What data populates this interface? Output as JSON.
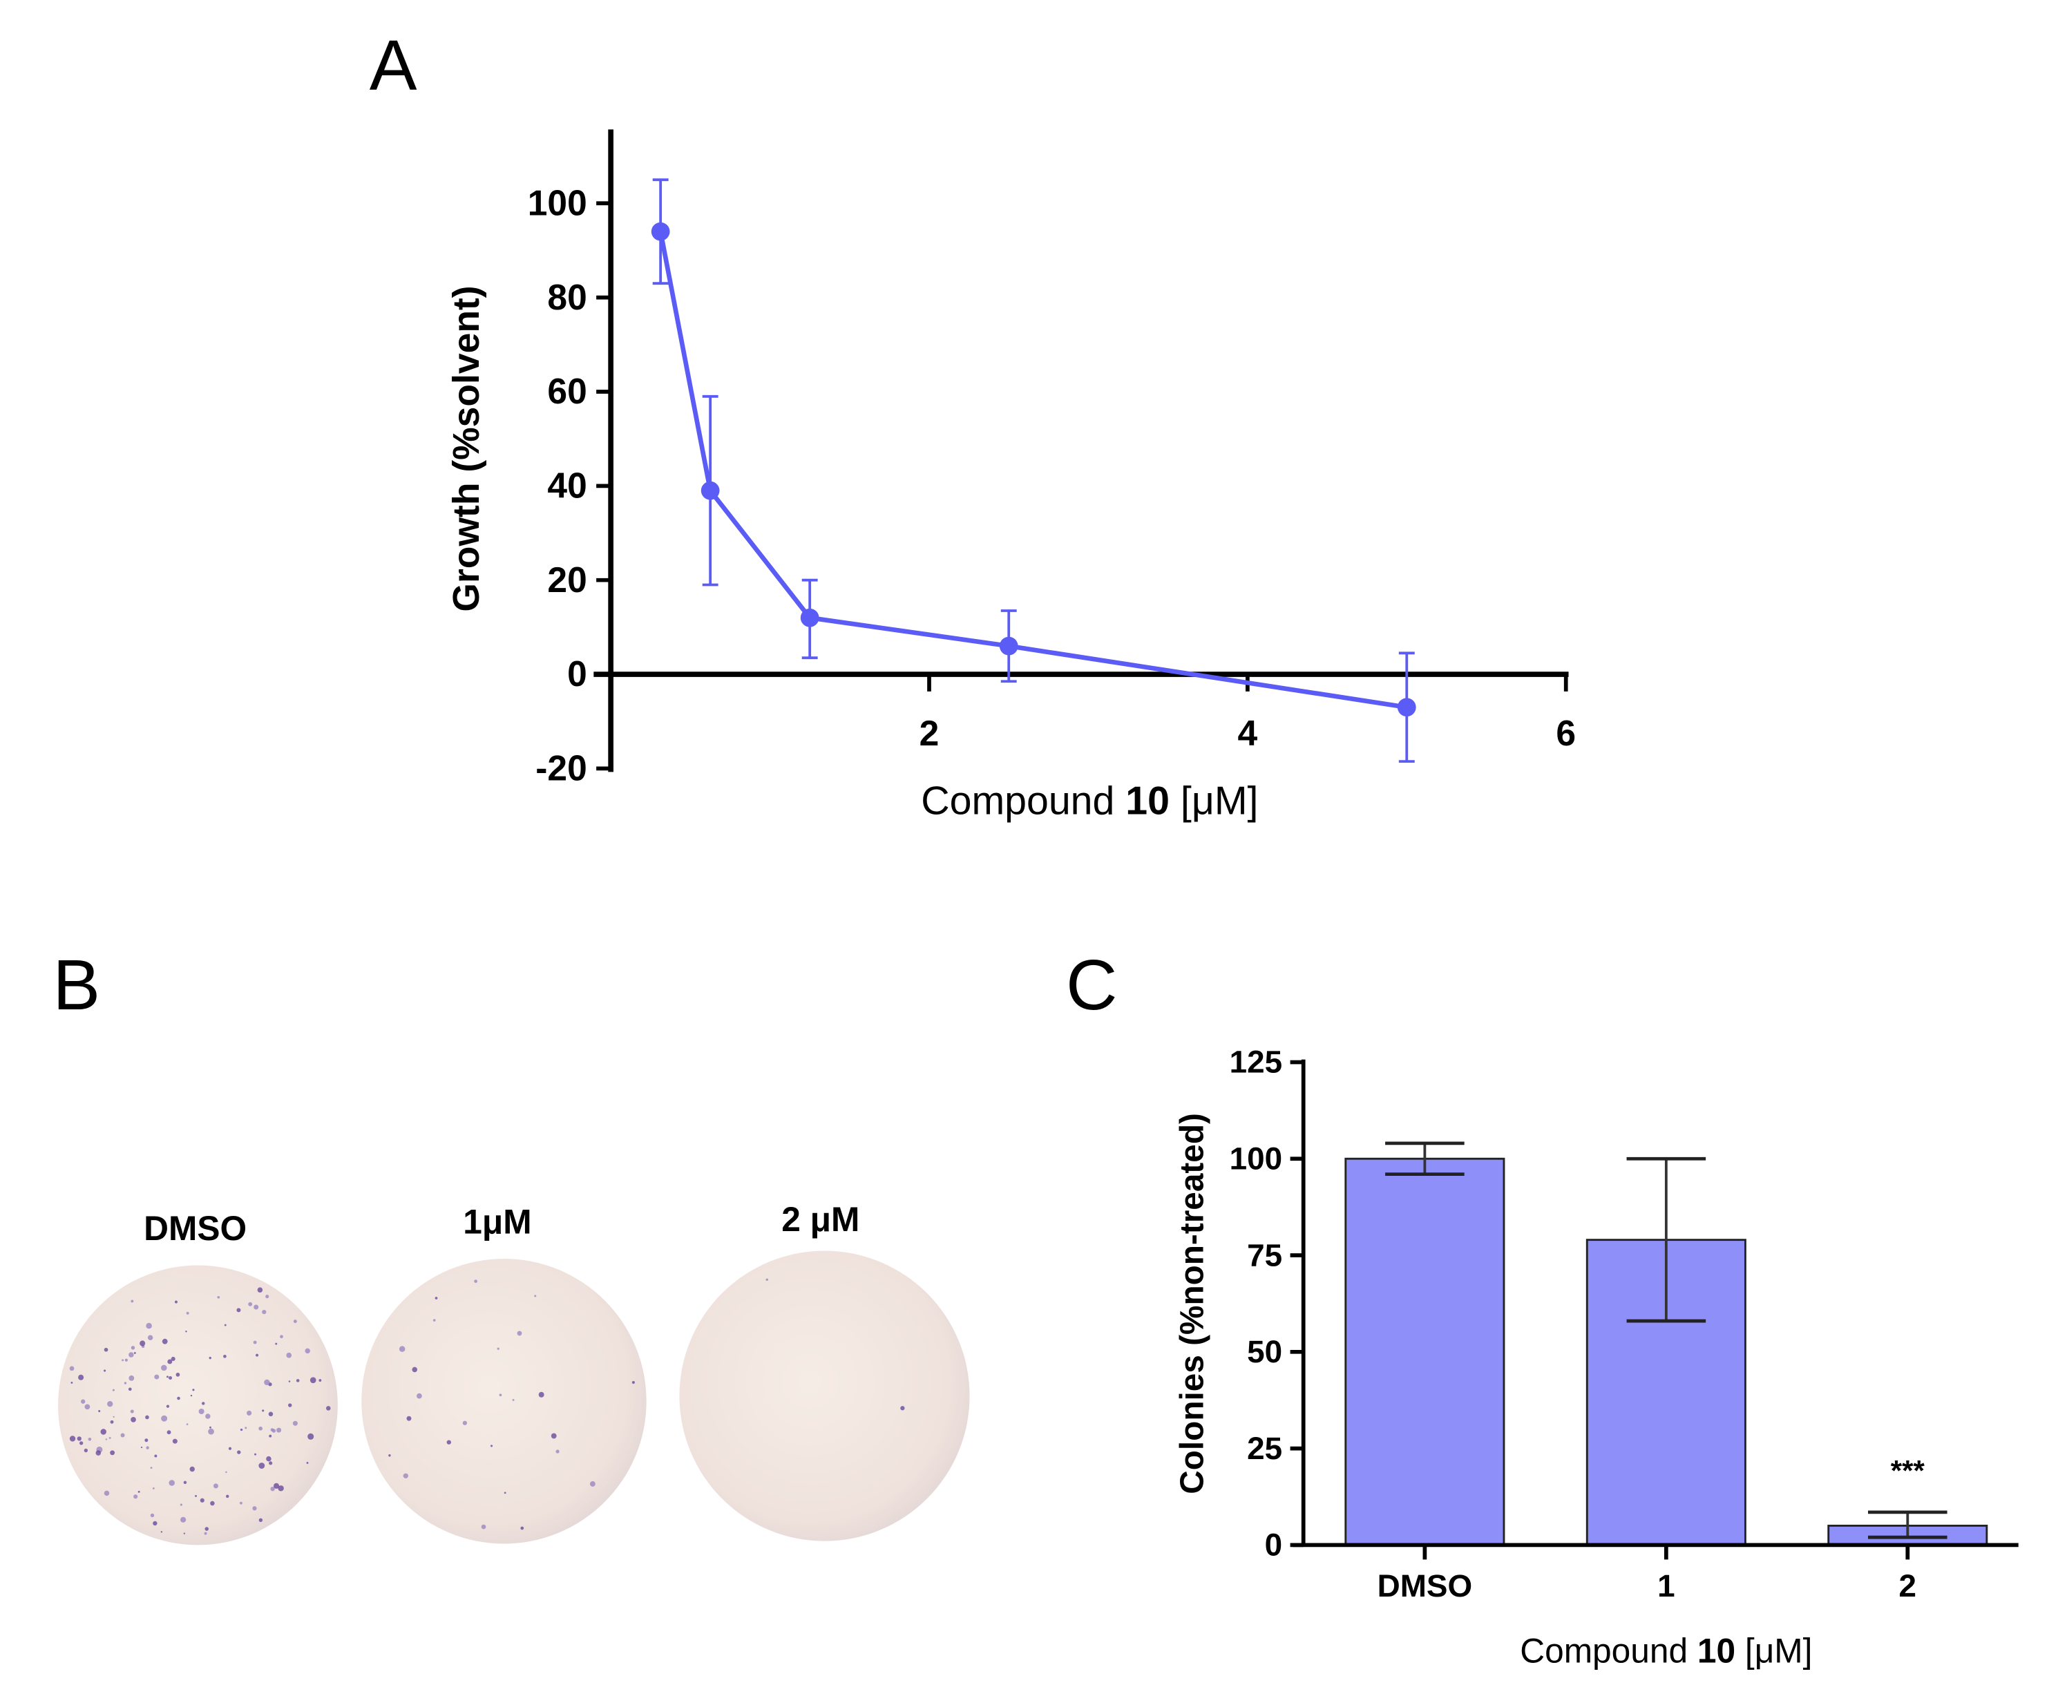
{
  "panels": {
    "a": "A",
    "b": "B",
    "c": "C"
  },
  "plates": {
    "labels": [
      "DMSO",
      "1μM",
      "2 μM"
    ],
    "colony_density": [
      "high",
      "low",
      "none"
    ]
  },
  "chart_data": [
    {
      "type": "line",
      "panel": "A",
      "x": [
        0.3125,
        0.625,
        1.25,
        2.5,
        5
      ],
      "y": [
        94,
        39,
        12,
        6,
        -7
      ],
      "error_low": [
        83,
        19,
        3.5,
        -1.5,
        -18.5
      ],
      "error_high": [
        105,
        59,
        20,
        13.5,
        4.5
      ],
      "xlabel_prefix": "Compound ",
      "xlabel_bold": "10",
      "xlabel_suffix": " [μM]",
      "ylabel": "Growth (%solvent)",
      "xlim": [
        0,
        6
      ],
      "ylim": [
        -20,
        115
      ],
      "xticks": [
        "2",
        "4",
        "6"
      ],
      "yticks": [
        "-20",
        "0",
        "20",
        "40",
        "60",
        "80",
        "100"
      ],
      "color": "#5b5bf5",
      "grid": false
    },
    {
      "type": "bar",
      "panel": "C",
      "categories": [
        "DMSO",
        "1",
        "2"
      ],
      "values": [
        100,
        79,
        5
      ],
      "error_low": [
        96,
        58,
        2
      ],
      "error_high": [
        104,
        100,
        8.5
      ],
      "annotations": [
        "",
        "",
        "***"
      ],
      "xlabel_prefix": "Compound ",
      "xlabel_bold": "10",
      "xlabel_suffix": " [μM]",
      "ylabel": "Colonies (%non-treated)",
      "ylim": [
        0,
        125
      ],
      "yticks": [
        "0",
        "25",
        "50",
        "75",
        "100",
        "125"
      ],
      "color": "#8f8ffa",
      "grid": false
    }
  ]
}
